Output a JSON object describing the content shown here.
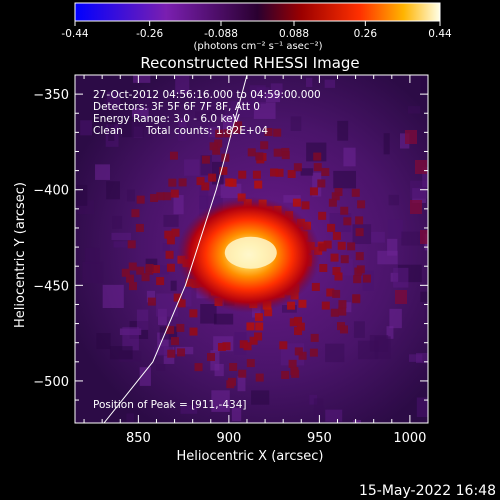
{
  "title": "Reconstructed RHESSI Image",
  "date_stamp": "15-May-2022 16:48",
  "colorbar": {
    "ticks": [
      "-0.44",
      "-0.26",
      "-0.088",
      "0.088",
      "0.26",
      "0.44"
    ],
    "range": [
      -0.44,
      0.44
    ],
    "units": "(photons cm⁻² s⁻¹ asec⁻²)"
  },
  "info": {
    "line1": "27-Oct-2012 04:56:16.000 to 04:59:00.000",
    "line2": "Detectors: 3F 5F 6F 7F 8F, Att 0",
    "line3": "Energy Range: 3.0 - 6.0 keV",
    "line4_a": "Clean",
    "line4_b": "Total counts: 1.82E+04"
  },
  "peak_label": "Position of Peak = [911,-434]",
  "chart_data": {
    "type": "heatmap",
    "title": "Reconstructed RHESSI Image",
    "xlabel": "Heliocentric X (arcsec)",
    "ylabel": "Heliocentric Y (arcsec)",
    "xlim": [
      815,
      1010
    ],
    "ylim": [
      -522,
      -340
    ],
    "x_ticks": [
      850,
      900,
      950,
      1000
    ],
    "y_ticks": [
      -350,
      -400,
      -450,
      -500
    ],
    "peak": [
      911,
      -434
    ],
    "peak_value": 0.44,
    "colormap": "rainbow-like (blue-purple-red-yellow-white)",
    "limb_curve": [
      [
        831,
        -522
      ],
      [
        858,
        -490
      ],
      [
        876,
        -450
      ],
      [
        893,
        -400
      ],
      [
        910,
        -340
      ]
    ]
  }
}
